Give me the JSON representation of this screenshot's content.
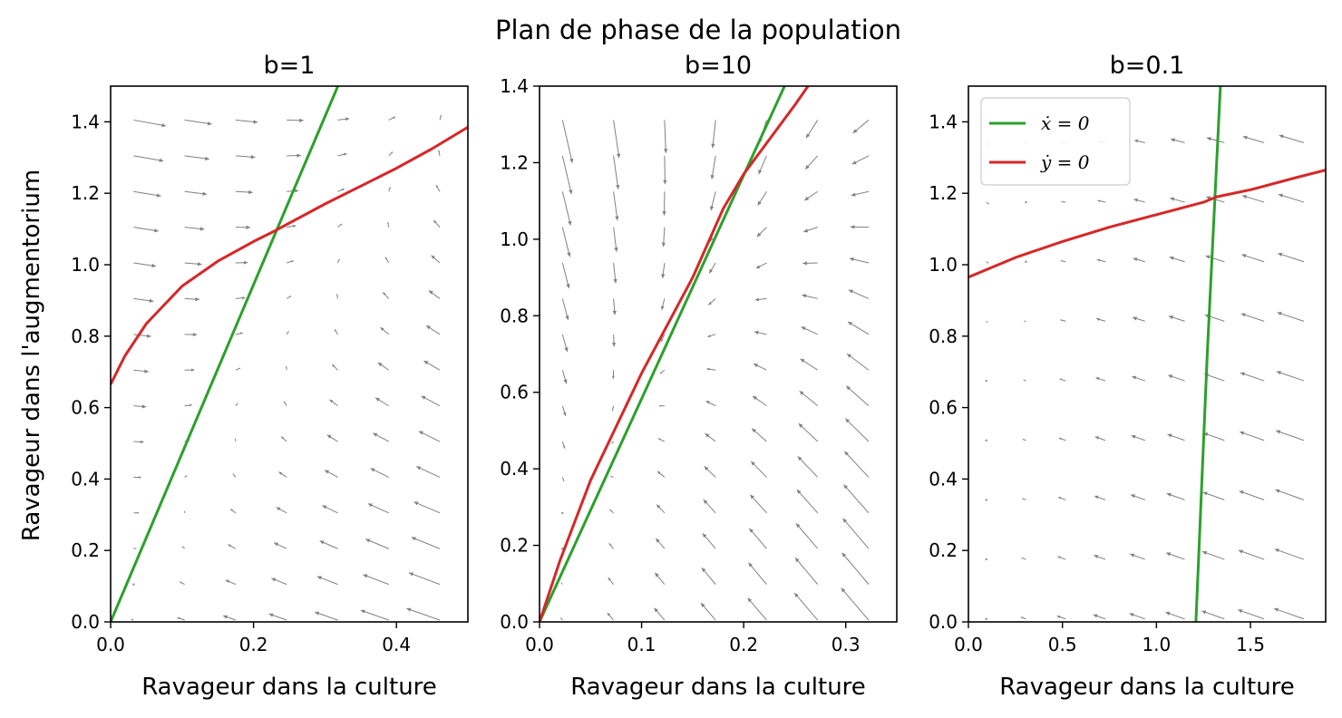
{
  "figure": {
    "suptitle": "Plan de phase de la population",
    "ylabel": "Ravageur dans l'augmentorium",
    "colors": {
      "xnull": "#2ca02c",
      "ynull": "#d62728",
      "arrows": "#808080",
      "axes": "#000000"
    }
  },
  "chart_data": [
    {
      "type": "line",
      "title": "b=1",
      "xlabel": "Ravageur dans la culture",
      "ylabel": "Ravageur dans l'augmentorium",
      "xlim": [
        0,
        0.5
      ],
      "ylim": [
        0,
        1.5
      ],
      "xticks": [
        0.0,
        0.2,
        0.4
      ],
      "xtick_labels": [
        "0.0",
        "0.2",
        "0.4"
      ],
      "yticks": [
        0.0,
        0.2,
        0.4,
        0.6,
        0.8,
        1.0,
        1.2,
        1.4
      ],
      "ytick_labels": [
        "0.0",
        "0.2",
        "0.4",
        "0.6",
        "0.8",
        "1.0",
        "1.2",
        "1.4"
      ],
      "series": [
        {
          "name": "x-nullcline",
          "color": "#2ca02c",
          "x": [
            0.0,
            0.05,
            0.1,
            0.15,
            0.2,
            0.25,
            0.3,
            0.318
          ],
          "y": [
            0.0,
            0.236,
            0.472,
            0.708,
            0.944,
            1.18,
            1.415,
            1.5
          ]
        },
        {
          "name": "y-nullcline",
          "color": "#d62728",
          "x": [
            0.0,
            0.02,
            0.05,
            0.1,
            0.15,
            0.2,
            0.23,
            0.3,
            0.35,
            0.4,
            0.45,
            0.5
          ],
          "y": [
            0.665,
            0.745,
            0.835,
            0.94,
            1.01,
            1.065,
            1.095,
            1.17,
            1.22,
            1.27,
            1.325,
            1.385
          ]
        }
      ],
      "field": {
        "nx": 7,
        "ny": 15,
        "k": 0.68,
        "a": 0.94,
        "scale": 0.04,
        "xscale": 1.0
      }
    },
    {
      "type": "line",
      "title": "b=10",
      "xlabel": "Ravageur dans la culture",
      "ylabel": "",
      "xlim": [
        0,
        0.35
      ],
      "ylim": [
        0,
        1.4
      ],
      "xticks": [
        0.0,
        0.1,
        0.2,
        0.3
      ],
      "xtick_labels": [
        "0.0",
        "0.1",
        "0.2",
        "0.3"
      ],
      "yticks": [
        0.0,
        0.2,
        0.4,
        0.6,
        0.8,
        1.0,
        1.2,
        1.4
      ],
      "ytick_labels": [
        "0.0",
        "0.2",
        "0.4",
        "0.6",
        "0.8",
        "1.0",
        "1.2",
        "1.4"
      ],
      "series": [
        {
          "name": "x-nullcline",
          "color": "#2ca02c",
          "x": [
            0.0,
            0.05,
            0.1,
            0.15,
            0.2,
            0.24
          ],
          "y": [
            0.0,
            0.292,
            0.583,
            0.875,
            1.167,
            1.4
          ]
        },
        {
          "name": "y-nullcline",
          "color": "#d62728",
          "x": [
            0.0,
            0.02,
            0.05,
            0.1,
            0.15,
            0.18,
            0.2,
            0.25,
            0.263
          ],
          "y": [
            0.0,
            0.16,
            0.37,
            0.65,
            0.9,
            1.08,
            1.17,
            1.35,
            1.4
          ]
        }
      ],
      "field": {
        "nx": 7,
        "ny": 15,
        "k": 0.3,
        "a": 5.8,
        "scale": 0.11,
        "xscale": 0.3
      }
    },
    {
      "type": "line",
      "title": "b=0.1",
      "xlabel": "Ravageur dans la culture",
      "ylabel": "",
      "xlim": [
        0,
        1.9
      ],
      "ylim": [
        0,
        1.5
      ],
      "xticks": [
        0.0,
        0.5,
        1.0,
        1.5
      ],
      "xtick_labels": [
        "0.0",
        "0.5",
        "1.0",
        "1.5"
      ],
      "yticks": [
        0.0,
        0.2,
        0.4,
        0.6,
        0.8,
        1.0,
        1.2,
        1.4
      ],
      "ytick_labels": [
        "0.0",
        "0.2",
        "0.4",
        "0.6",
        "0.8",
        "1.0",
        "1.2",
        "1.4"
      ],
      "series": [
        {
          "name": "x-nullcline",
          "label": "ẋ = 0",
          "color": "#2ca02c",
          "x": [
            1.21,
            1.27,
            1.34
          ],
          "y": [
            0.0,
            0.75,
            1.5
          ]
        },
        {
          "name": "y-nullcline",
          "label": "ẏ = 0",
          "color": "#d62728",
          "x": [
            0.0,
            0.25,
            0.5,
            0.75,
            1.0,
            1.25,
            1.32,
            1.5,
            1.75,
            1.9
          ],
          "y": [
            0.965,
            1.02,
            1.065,
            1.105,
            1.14,
            1.175,
            1.19,
            1.21,
            1.245,
            1.265
          ]
        }
      ],
      "legend": {
        "position": "upper-left",
        "entries": [
          "ẋ = 0",
          "ẏ = 0"
        ]
      },
      "field": {
        "nx": 9,
        "ny": 9,
        "k": 0.12,
        "a": 3.0,
        "scale": 0.035,
        "xscale": 1.0
      }
    }
  ]
}
